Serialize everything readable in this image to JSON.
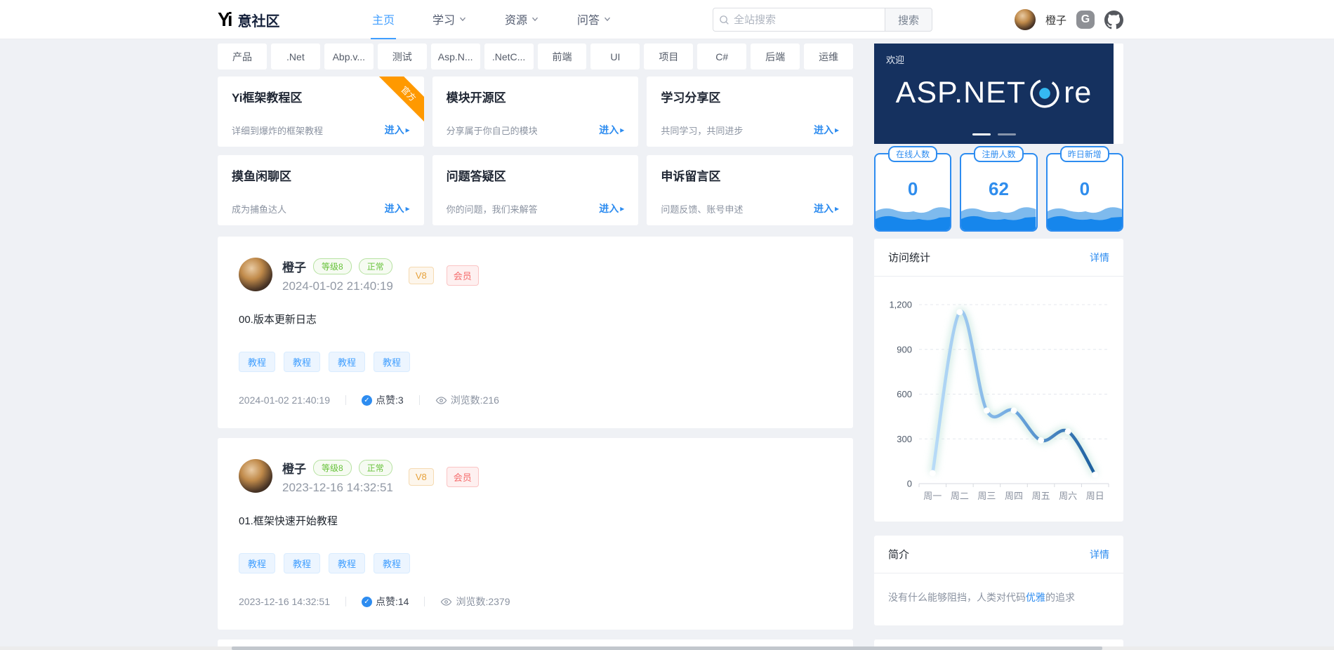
{
  "navbar": {
    "logo_mark": "Yi",
    "logo_text": "意社区",
    "nav_items": [
      {
        "label": "主页",
        "active": true,
        "has_dropdown": false
      },
      {
        "label": "学习",
        "active": false,
        "has_dropdown": true
      },
      {
        "label": "资源",
        "active": false,
        "has_dropdown": true
      },
      {
        "label": "问答",
        "active": false,
        "has_dropdown": true
      }
    ],
    "search": {
      "placeholder": "全站搜索",
      "button": "搜索"
    },
    "user": {
      "name": "橙子"
    }
  },
  "tags": [
    "产品",
    ".Net",
    "Abp.v...",
    "测试",
    "Asp.N...",
    ".NetC...",
    "前端",
    "UI",
    "项目",
    "C#",
    "后端",
    "运维"
  ],
  "zones": [
    {
      "title": "Yi框架教程区",
      "desc": "详细到爆炸的框架教程",
      "enter": "进入",
      "ribbon": "官方"
    },
    {
      "title": "模块开源区",
      "desc": "分享属于你自己的模块",
      "enter": "进入"
    },
    {
      "title": "学习分享区",
      "desc": "共同学习，共同进步",
      "enter": "进入"
    },
    {
      "title": "摸鱼闲聊区",
      "desc": "成为捕鱼达人",
      "enter": "进入"
    },
    {
      "title": "问题答疑区",
      "desc": "你的问题，我们来解答",
      "enter": "进入"
    },
    {
      "title": "申诉留言区",
      "desc": "问题反馈、账号申述",
      "enter": "进入"
    }
  ],
  "posts": [
    {
      "author": "橙子",
      "level": "等级8",
      "status": "正常",
      "vip": "V8",
      "member": "会员",
      "datetime": "2024-01-02 21:40:19",
      "title": "00.版本更新日志",
      "tags": [
        "教程",
        "教程",
        "教程",
        "教程"
      ],
      "likes_label": "点赞:3",
      "views_label": "浏览数:216"
    },
    {
      "author": "橙子",
      "level": "等级8",
      "status": "正常",
      "vip": "V8",
      "member": "会员",
      "datetime": "2023-12-16 14:32:51",
      "title": "01.框架快速开始教程",
      "tags": [
        "教程",
        "教程",
        "教程",
        "教程"
      ],
      "likes_label": "点赞:14",
      "views_label": "浏览数:2379"
    }
  ],
  "sidebar": {
    "banner": {
      "welcome": "欢迎",
      "brand_prefix": "ASP.NET",
      "brand_suffix": "re",
      "bg": "#15315f",
      "accent": "#35b9f1"
    },
    "stats": [
      {
        "label": "在线人数",
        "value": "0"
      },
      {
        "label": "注册人数",
        "value": "62"
      },
      {
        "label": "昨日新增",
        "value": "0"
      }
    ],
    "visit": {
      "title": "访问统计",
      "more": "详情"
    },
    "intro": {
      "title": "简介",
      "more": "详情",
      "text_before": "没有什么能够阻挡，人类对代码",
      "text_link": "优雅",
      "text_after": "的追求"
    }
  },
  "chart_data": {
    "type": "line",
    "title": "访问统计",
    "categories": [
      "周一",
      "周二",
      "周三",
      "周四",
      "周五",
      "周六",
      "周日"
    ],
    "values": [
      70,
      1150,
      490,
      490,
      290,
      350,
      60
    ],
    "ylim": [
      0,
      1200
    ],
    "yticks": [
      0,
      300,
      600,
      900,
      1200
    ],
    "xlabel": "",
    "ylabel": "",
    "grid": "dashed",
    "smooth": true,
    "legend": "none",
    "line_gradient": [
      "#b9dcf8",
      "#6fa8e0",
      "#1c5e9e"
    ],
    "glow_color": "#cfeae2"
  }
}
